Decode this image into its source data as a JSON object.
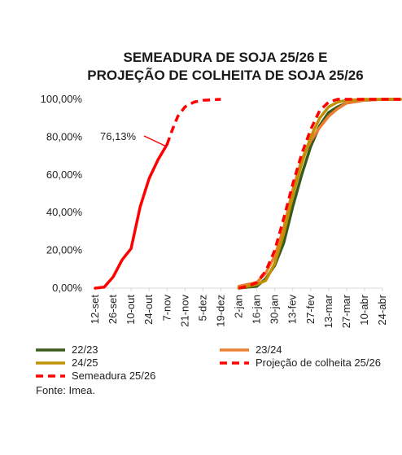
{
  "chart_data": {
    "type": "line",
    "title_line1": "SEMEADURA DE SOJA 25/26 E",
    "title_line2": "PROJEÇÃO DE COLHEITA DE SOJA 25/26",
    "ylim": [
      0,
      100
    ],
    "y_ticks": [
      "0,00%",
      "20,00%",
      "40,00%",
      "60,00%",
      "80,00%",
      "100,00%"
    ],
    "x_ticks": [
      "12-set",
      "26-set",
      "10-out",
      "24-out",
      "7-nov",
      "21-nov",
      "5-dez",
      "19-dez",
      "2-jan",
      "16-jan",
      "30-jan",
      "13-fev",
      "27-fev",
      "13-mar",
      "27-mar",
      "10-abr",
      "24-abr"
    ],
    "annotation": {
      "label": "76,13%",
      "x": 5.0,
      "y": 76.13
    },
    "series": [
      {
        "name": "Semeadura 25/26",
        "color": "#ff0000",
        "style": "solid",
        "points": [
          [
            0,
            0
          ],
          [
            0.5,
            0.5
          ],
          [
            1.0,
            6
          ],
          [
            1.5,
            15
          ],
          [
            2.0,
            21
          ],
          [
            2.5,
            43
          ],
          [
            3.0,
            58
          ],
          [
            3.5,
            68
          ],
          [
            4.0,
            76.13
          ]
        ]
      },
      {
        "name": "Semeadura 25/26",
        "color": "#ff0000",
        "style": "dashed",
        "points": [
          [
            4.0,
            76.13
          ],
          [
            4.3,
            84
          ],
          [
            4.6,
            91
          ],
          [
            5.0,
            96
          ],
          [
            5.5,
            98.5
          ],
          [
            6.0,
            99.5
          ],
          [
            7.0,
            100
          ]
        ]
      },
      {
        "name": "22/23",
        "color": "#3a5a1c",
        "style": "solid",
        "points": [
          [
            8.0,
            0
          ],
          [
            8.5,
            0.5
          ],
          [
            9.0,
            1
          ],
          [
            9.5,
            5
          ],
          [
            10.0,
            12
          ],
          [
            10.5,
            24
          ],
          [
            11.0,
            43
          ],
          [
            11.5,
            60
          ],
          [
            12.0,
            75
          ],
          [
            12.5,
            86
          ],
          [
            13.0,
            93
          ],
          [
            13.5,
            96
          ],
          [
            14.0,
            98
          ],
          [
            15.0,
            99.5
          ],
          [
            16.0,
            100
          ],
          [
            17.0,
            100
          ]
        ]
      },
      {
        "name": "23/24",
        "color": "#ed7d31",
        "style": "solid",
        "points": [
          [
            8.0,
            1
          ],
          [
            8.5,
            2
          ],
          [
            9.0,
            3
          ],
          [
            9.5,
            8
          ],
          [
            10.0,
            17
          ],
          [
            10.5,
            32
          ],
          [
            11.0,
            52
          ],
          [
            11.5,
            68
          ],
          [
            12.0,
            78
          ],
          [
            12.5,
            85
          ],
          [
            13.0,
            91
          ],
          [
            13.5,
            95
          ],
          [
            14.0,
            98
          ],
          [
            15.0,
            99.5
          ],
          [
            16.0,
            100
          ],
          [
            17.0,
            100
          ]
        ]
      },
      {
        "name": "24/25",
        "color": "#bf9000",
        "style": "solid",
        "points": [
          [
            8.0,
            0
          ],
          [
            8.5,
            1
          ],
          [
            9.0,
            2
          ],
          [
            9.5,
            4
          ],
          [
            10.0,
            13
          ],
          [
            10.5,
            29
          ],
          [
            11.0,
            49
          ],
          [
            11.5,
            66
          ],
          [
            12.0,
            80
          ],
          [
            12.5,
            90
          ],
          [
            13.0,
            96
          ],
          [
            13.5,
            98.5
          ],
          [
            14.0,
            99.5
          ],
          [
            15.0,
            100
          ],
          [
            16.0,
            100
          ],
          [
            17.0,
            100
          ]
        ]
      },
      {
        "name": "Projeção de colheita 25/26",
        "color": "#ff0000",
        "style": "dashed",
        "points": [
          [
            8.0,
            0
          ],
          [
            8.5,
            1
          ],
          [
            9.0,
            3
          ],
          [
            9.5,
            9
          ],
          [
            10.0,
            20
          ],
          [
            10.5,
            37
          ],
          [
            11.0,
            55
          ],
          [
            11.5,
            71
          ],
          [
            12.0,
            84
          ],
          [
            12.5,
            94
          ],
          [
            13.0,
            98.5
          ],
          [
            13.5,
            100
          ],
          [
            14.0,
            100
          ],
          [
            15.0,
            100
          ],
          [
            16.0,
            100
          ],
          [
            17.0,
            100
          ]
        ]
      }
    ],
    "legend": [
      {
        "label": "22/23",
        "color": "#3a5a1c",
        "style": "solid"
      },
      {
        "label": "23/24",
        "color": "#ed7d31",
        "style": "solid"
      },
      {
        "label": "24/25",
        "color": "#bf9000",
        "style": "solid"
      },
      {
        "label": "Projeção de colheita 25/26",
        "color": "#ff0000",
        "style": "dashed"
      },
      {
        "label": "Semeadura 25/26",
        "color": "#ff0000",
        "style": "dashed"
      }
    ],
    "source": "Fonte: Imea."
  }
}
